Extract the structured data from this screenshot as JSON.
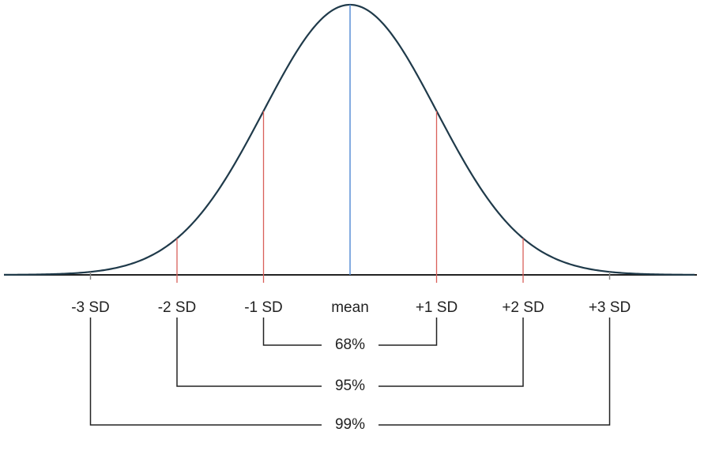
{
  "axis_labels": [
    "-3 SD",
    "-2 SD",
    "-1 SD",
    "mean",
    "+1 SD",
    "+2 SD",
    "+3 SD"
  ],
  "intervals": [
    "68%",
    "95%",
    "99%"
  ]
}
